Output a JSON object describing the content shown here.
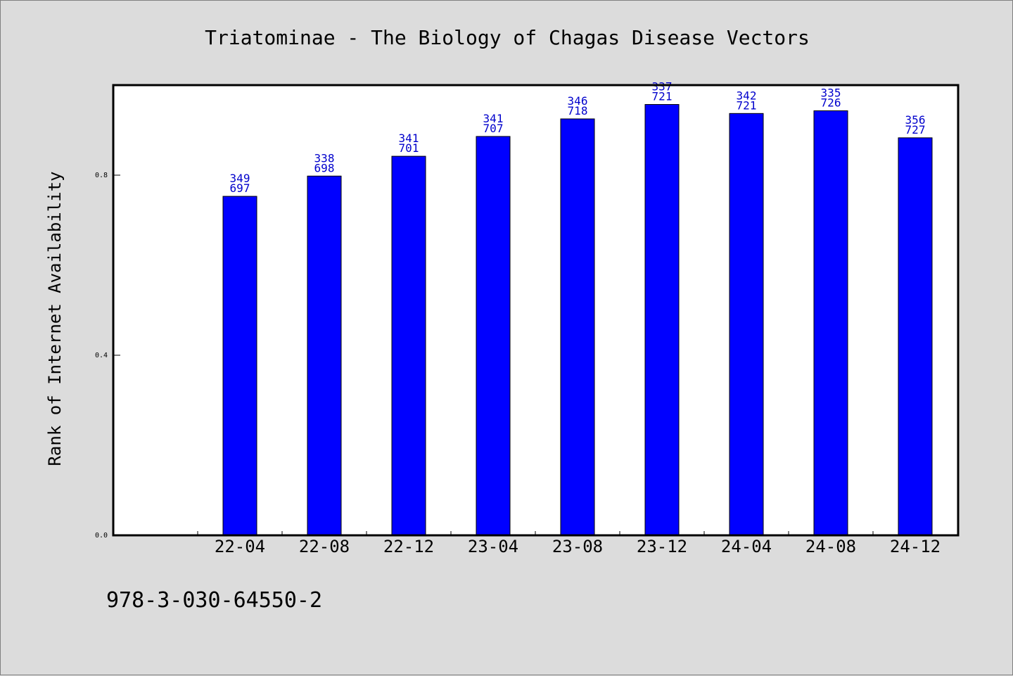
{
  "chart_data": {
    "type": "bar",
    "title": "Triatominae - The Biology of Chagas Disease Vectors",
    "xlabel": "",
    "ylabel": "Rank of Internet Availability",
    "ylim": [
      0.0,
      1.0
    ],
    "yticks": [
      "0.0",
      "0.4",
      "0.8"
    ],
    "grid": false,
    "categories": [
      "22-04",
      "22-08",
      "22-12",
      "23-04",
      "23-08",
      "23-12",
      "24-04",
      "24-08",
      "24-12"
    ],
    "values": [
      0.753,
      0.798,
      0.842,
      0.886,
      0.925,
      0.957,
      0.937,
      0.943,
      0.883
    ],
    "labels_top": [
      "349",
      "338",
      "341",
      "341",
      "346",
      "337",
      "342",
      "335",
      "356"
    ],
    "labels_bottom": [
      "697",
      "698",
      "701",
      "707",
      "718",
      "721",
      "721",
      "726",
      "727"
    ],
    "bar_color": "#0000ff",
    "label_color": "#0000cc"
  },
  "footer_text": "978-3-030-64550-2"
}
